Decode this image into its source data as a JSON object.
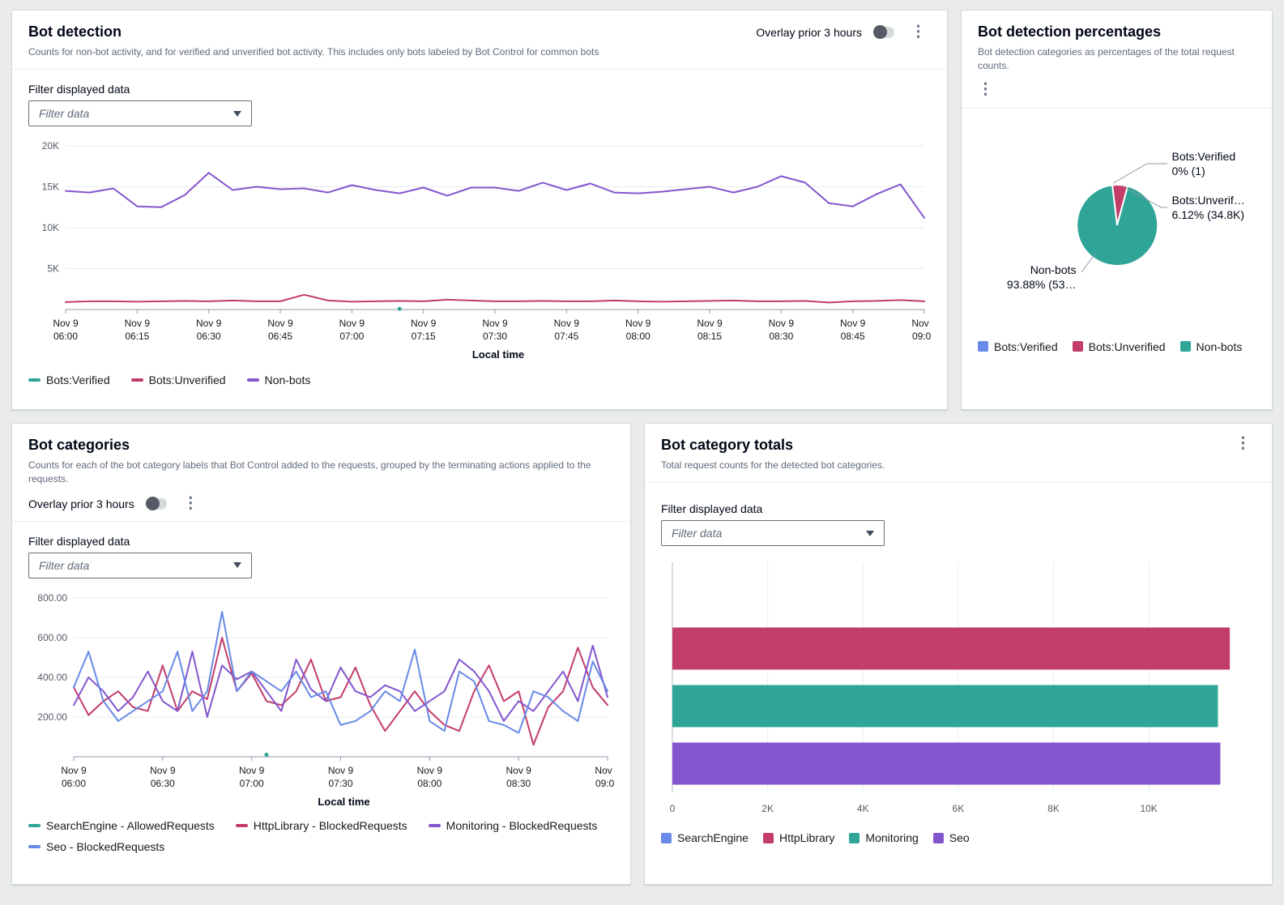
{
  "colors": {
    "blue": "#688ae8",
    "crimson": "#c33d69",
    "teal": "#2ea597",
    "purple": "#8456ce"
  },
  "panel_bot_detection": {
    "title": "Bot detection",
    "description": "Counts for non-bot activity, and for verified and unverified bot activity. This includes only bots labeled by Bot Control for common bots",
    "overlay_toggle_label": "Overlay prior 3 hours",
    "filter_label": "Filter displayed data",
    "filter_placeholder": "Filter data",
    "x_axis_title": "Local time",
    "legend": [
      {
        "label": "Bots:Verified",
        "color": "#2ea597"
      },
      {
        "label": "Bots:Unverified",
        "color": "#c33d69"
      },
      {
        "label": "Non-bots",
        "color": "#8456ce"
      }
    ]
  },
  "panel_bot_detection_percentages": {
    "title": "Bot detection percentages",
    "description": "Bot detection categories as percentages of the total request counts.",
    "labels": {
      "verified_name": "Bots:Verified",
      "verified_value": "0% (1)",
      "unverified_name": "Bots:Unverif…",
      "unverified_value": "6.12% (34.8K)",
      "nonbots_name": "Non-bots",
      "nonbots_value": "93.88% (53…"
    },
    "legend": [
      {
        "label": "Bots:Verified",
        "color": "#688ae8"
      },
      {
        "label": "Bots:Unverified",
        "color": "#c33d69"
      },
      {
        "label": "Non-bots",
        "color": "#2ea597"
      }
    ]
  },
  "panel_bot_categories": {
    "title": "Bot categories",
    "description": "Counts for each of the bot category labels that Bot Control added to the requests, grouped by the terminating actions applied to the requests.",
    "overlay_toggle_label": "Overlay prior 3 hours",
    "filter_label": "Filter displayed data",
    "filter_placeholder": "Filter data",
    "x_axis_title": "Local time",
    "legend": [
      {
        "label": "SearchEngine - AllowedRequests",
        "color": "#2ea597"
      },
      {
        "label": "HttpLibrary - BlockedRequests",
        "color": "#c33d69"
      },
      {
        "label": "Monitoring - BlockedRequests",
        "color": "#8456ce"
      },
      {
        "label": "Seo - BlockedRequests",
        "color": "#688ae8"
      }
    ]
  },
  "panel_bot_category_totals": {
    "title": "Bot category totals",
    "description": "Total request counts for the detected bot categories.",
    "filter_label": "Filter displayed data",
    "filter_placeholder": "Filter data",
    "legend": [
      {
        "label": "SearchEngine",
        "color": "#688ae8"
      },
      {
        "label": "HttpLibrary",
        "color": "#c33d69"
      },
      {
        "label": "Monitoring",
        "color": "#2ea597"
      },
      {
        "label": "Seo",
        "color": "#8456ce"
      }
    ]
  },
  "chart_data": [
    {
      "id": "bot-detection",
      "type": "line",
      "title": "Bot detection",
      "xlabel": "Local time",
      "ylim": [
        0,
        20000
      ],
      "grid": true,
      "legend_position": "bottom",
      "yticks": [
        {
          "value": 5000,
          "label": "5K"
        },
        {
          "value": 10000,
          "label": "10K"
        },
        {
          "value": 15000,
          "label": "15K"
        },
        {
          "value": 20000,
          "label": "20K"
        }
      ],
      "x_count": 37,
      "x_ticks": [
        {
          "index": 0,
          "lines": [
            "Nov 9",
            "06:00"
          ]
        },
        {
          "index": 3,
          "lines": [
            "Nov 9",
            "06:15"
          ]
        },
        {
          "index": 6,
          "lines": [
            "Nov 9",
            "06:30"
          ]
        },
        {
          "index": 9,
          "lines": [
            "Nov 9",
            "06:45"
          ]
        },
        {
          "index": 12,
          "lines": [
            "Nov 9",
            "07:00"
          ]
        },
        {
          "index": 15,
          "lines": [
            "Nov 9",
            "07:15"
          ]
        },
        {
          "index": 18,
          "lines": [
            "Nov 9",
            "07:30"
          ]
        },
        {
          "index": 21,
          "lines": [
            "Nov 9",
            "07:45"
          ]
        },
        {
          "index": 24,
          "lines": [
            "Nov 9",
            "08:00"
          ]
        },
        {
          "index": 27,
          "lines": [
            "Nov 9",
            "08:15"
          ]
        },
        {
          "index": 30,
          "lines": [
            "Nov 9",
            "08:30"
          ]
        },
        {
          "index": 33,
          "lines": [
            "Nov 9",
            "08:45"
          ]
        },
        {
          "index": 36,
          "lines": [
            "Nov 9",
            "09:00"
          ]
        }
      ],
      "series": [
        {
          "name": "Bots:Verified",
          "color": "#2ea597",
          "values": [
            null,
            null,
            null,
            null,
            null,
            null,
            null,
            null,
            null,
            null,
            null,
            null,
            null,
            null,
            80,
            null,
            null,
            null,
            null,
            null,
            null,
            null,
            null,
            null,
            null,
            null,
            null,
            null,
            null,
            null,
            null,
            null,
            null,
            null,
            null,
            null,
            null
          ]
        },
        {
          "name": "Bots:Unverified",
          "color": "#c33d69",
          "values": [
            900,
            1000,
            1000,
            950,
            1000,
            1050,
            1000,
            1100,
            1000,
            1000,
            1800,
            1100,
            950,
            1000,
            1050,
            1000,
            1200,
            1100,
            1000,
            1000,
            1050,
            1000,
            1000,
            1100,
            1000,
            950,
            1000,
            1050,
            1100,
            1000,
            1000,
            1050,
            850,
            1000,
            1050,
            1150,
            1000
          ]
        },
        {
          "name": "Non-bots",
          "color": "#8456ce",
          "values": [
            14500,
            14300,
            14800,
            12600,
            12500,
            14000,
            16700,
            14600,
            15000,
            14700,
            14800,
            14300,
            15200,
            14600,
            14200,
            14900,
            13900,
            14900,
            14900,
            14500,
            15500,
            14600,
            15400,
            14300,
            14200,
            14400,
            14700,
            15000,
            14300,
            15000,
            16300,
            15500,
            13000,
            12600,
            14100,
            15300,
            11200
          ]
        }
      ]
    },
    {
      "id": "bot-detection-percentages",
      "type": "pie",
      "title": "Bot detection percentages",
      "slices": [
        {
          "name": "Bots:Verified",
          "value": 1,
          "pct": 0,
          "label": "0% (1)",
          "color": "#688ae8"
        },
        {
          "name": "Bots:Unverified",
          "value": 34800,
          "pct": 6.12,
          "label": "6.12% (34.8K)",
          "color": "#c33d69"
        },
        {
          "name": "Non-bots",
          "value": 533600,
          "pct": 93.88,
          "label": "93.88% (53…",
          "color": "#2ea597"
        }
      ]
    },
    {
      "id": "bot-categories",
      "type": "line",
      "title": "Bot categories",
      "xlabel": "Local time",
      "ylim": [
        0,
        800
      ],
      "grid": true,
      "legend_position": "bottom",
      "yticks": [
        {
          "value": 200,
          "label": "200.00"
        },
        {
          "value": 400,
          "label": "400.00"
        },
        {
          "value": 600,
          "label": "600.00"
        },
        {
          "value": 800,
          "label": "800.00"
        }
      ],
      "x_count": 37,
      "x_ticks": [
        {
          "index": 0,
          "lines": [
            "Nov 9",
            "06:00"
          ]
        },
        {
          "index": 6,
          "lines": [
            "Nov 9",
            "06:30"
          ]
        },
        {
          "index": 12,
          "lines": [
            "Nov 9",
            "07:00"
          ]
        },
        {
          "index": 18,
          "lines": [
            "Nov 9",
            "07:30"
          ]
        },
        {
          "index": 24,
          "lines": [
            "Nov 9",
            "08:00"
          ]
        },
        {
          "index": 30,
          "lines": [
            "Nov 9",
            "08:30"
          ]
        },
        {
          "index": 36,
          "lines": [
            "Nov 9",
            "09:00"
          ]
        }
      ],
      "series": [
        {
          "name": "SearchEngine - AllowedRequests",
          "color": "#2ea597",
          "values": [
            null,
            null,
            null,
            null,
            null,
            null,
            null,
            null,
            null,
            null,
            null,
            null,
            null,
            10,
            null,
            null,
            null,
            null,
            null,
            null,
            null,
            null,
            null,
            null,
            null,
            null,
            null,
            null,
            null,
            null,
            null,
            null,
            null,
            null,
            null,
            null,
            null
          ]
        },
        {
          "name": "HttpLibrary - BlockedRequests",
          "color": "#c33d69",
          "values": [
            350,
            210,
            280,
            330,
            250,
            230,
            460,
            230,
            330,
            290,
            600,
            330,
            420,
            280,
            260,
            330,
            490,
            280,
            300,
            450,
            260,
            130,
            230,
            330,
            230,
            160,
            130,
            330,
            460,
            280,
            330,
            60,
            250,
            330,
            550,
            350,
            260
          ]
        },
        {
          "name": "Monitoring - BlockedRequests",
          "color": "#8456ce",
          "values": [
            260,
            400,
            330,
            230,
            300,
            430,
            280,
            230,
            530,
            200,
            460,
            390,
            430,
            330,
            230,
            490,
            340,
            280,
            450,
            330,
            300,
            360,
            330,
            230,
            280,
            330,
            490,
            430,
            330,
            180,
            280,
            230,
            330,
            430,
            280,
            560,
            300
          ]
        },
        {
          "name": "Seo - BlockedRequests",
          "color": "#688ae8",
          "values": [
            350,
            530,
            280,
            180,
            230,
            280,
            330,
            530,
            230,
            330,
            730,
            330,
            430,
            380,
            330,
            430,
            300,
            330,
            160,
            180,
            230,
            330,
            280,
            540,
            180,
            130,
            430,
            380,
            180,
            160,
            120,
            330,
            300,
            230,
            180,
            480,
            330
          ]
        }
      ]
    },
    {
      "id": "bot-category-totals",
      "type": "bar",
      "orientation": "horizontal",
      "title": "Bot category totals",
      "categories": [
        "SearchEngine",
        "HttpLibrary",
        "Monitoring",
        "Seo"
      ],
      "values": [
        0,
        11700,
        11450,
        11500
      ],
      "bar_colors": [
        "#688ae8",
        "#c33d69",
        "#2ea597",
        "#8456ce"
      ],
      "xlim": [
        0,
        11800
      ],
      "xticks": [
        {
          "value": 0,
          "label": "0"
        },
        {
          "value": 2000,
          "label": "2K"
        },
        {
          "value": 4000,
          "label": "4K"
        },
        {
          "value": 6000,
          "label": "6K"
        },
        {
          "value": 8000,
          "label": "8K"
        },
        {
          "value": 10000,
          "label": "10K"
        }
      ]
    }
  ]
}
